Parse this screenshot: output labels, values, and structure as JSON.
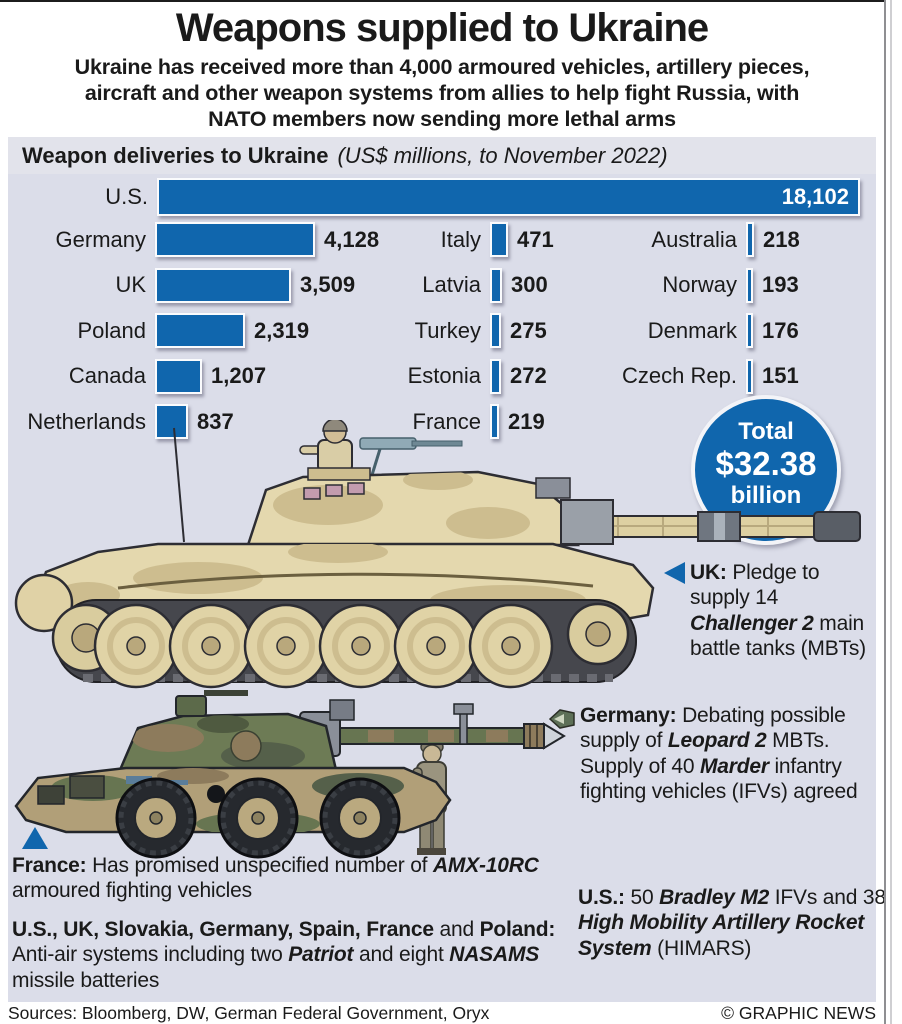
{
  "header": {
    "title": "Weapons supplied to Ukraine",
    "subtitle_lines": [
      "Ukraine has received more than 4,000 armoured vehicles, artillery pieces,",
      "aircraft and other weapon systems from allies to help fight Russia, with",
      "NATO members now sending more lethal arms"
    ]
  },
  "chart": {
    "heading": "Weapon deliveries to Ukraine",
    "heading_note": "(US$ millions, to November 2022)"
  },
  "chart_data": {
    "type": "bar",
    "title": "Weapon deliveries to Ukraine",
    "units": "US$ millions, to November 2022",
    "orientation": "horizontal",
    "categories": [
      "U.S.",
      "Germany",
      "UK",
      "Poland",
      "Canada",
      "Netherlands",
      "Italy",
      "Latvia",
      "Turkey",
      "Estonia",
      "France",
      "Australia",
      "Norway",
      "Denmark",
      "Czech Rep."
    ],
    "values": [
      18102,
      4128,
      3509,
      2319,
      1207,
      837,
      471,
      300,
      275,
      272,
      219,
      218,
      193,
      176,
      151
    ],
    "display_values": [
      "18,102",
      "4,128",
      "3,509",
      "2,319",
      "1,207",
      "837",
      "471",
      "300",
      "275",
      "272",
      "219",
      "218",
      "193",
      "176",
      "151"
    ],
    "layout": {
      "full_width_row_index": 0,
      "columns": [
        [
          1,
          2,
          3,
          4,
          5
        ],
        [
          6,
          7,
          8,
          9,
          10
        ],
        [
          11,
          12,
          13,
          14
        ]
      ],
      "legend": "none",
      "grid": "off"
    },
    "total": "Total $32.38 billion"
  },
  "total_badge": {
    "line1": "Total",
    "line2": "$32.38",
    "line3": "billion"
  },
  "annotations": {
    "uk": {
      "segments": [
        {
          "t": "UK: ",
          "b": true
        },
        {
          "t": "Pledge to supply 14 "
        },
        {
          "t": "Challenger 2",
          "b": true,
          "i": true
        },
        {
          "t": " main battle tanks (MBTs)"
        }
      ]
    },
    "germany": {
      "segments": [
        {
          "t": "Germany: ",
          "b": true
        },
        {
          "t": "Debating possible supply of "
        },
        {
          "t": "Leopard 2",
          "b": true,
          "i": true
        },
        {
          "t": " MBTs. Supply of 40 "
        },
        {
          "t": "Marder",
          "b": true,
          "i": true
        },
        {
          "t": " infantry fighting vehicles (IFVs) agreed"
        }
      ]
    },
    "us": {
      "segments": [
        {
          "t": "U.S.: ",
          "b": true
        },
        {
          "t": "50 "
        },
        {
          "t": "Bradley M2",
          "b": true,
          "i": true
        },
        {
          "t": " IFVs and 38 "
        },
        {
          "t": "High Mobility Artillery Rocket System",
          "b": true,
          "i": true
        },
        {
          "t": " (HIMARS)"
        }
      ]
    },
    "france": {
      "segments": [
        {
          "t": "France: ",
          "b": true
        },
        {
          "t": "Has promised unspecified number of "
        },
        {
          "t": "AMX-10RC",
          "b": true,
          "i": true
        },
        {
          "t": " armoured fighting vehicles"
        }
      ]
    },
    "antiair": {
      "segments": [
        {
          "t": "U.S., UK, Slovakia, Germany, Spain, France",
          "b": true
        },
        {
          "t": " and "
        },
        {
          "t": "Poland:",
          "b": true
        },
        {
          "t": " Anti-air systems including two "
        },
        {
          "t": "Patriot",
          "b": true,
          "i": true
        },
        {
          "t": " and eight "
        },
        {
          "t": "NASAMS",
          "b": true,
          "i": true
        },
        {
          "t": " missile batteries"
        }
      ]
    }
  },
  "illustrations": {
    "tank_caption": "Challenger 2 main battle tank",
    "amx_caption": "AMX-10RC armoured fighting vehicle"
  },
  "footer": {
    "sources": "Sources: Bloomberg, DW, German Federal Government, Oryx",
    "credit": "© GRAPHIC NEWS"
  },
  "colors": {
    "accent_blue": "#1066ad",
    "panel_bg": "#dbdde9",
    "header_strip_bg": "#e2e3eb",
    "text": "#1a1a1a",
    "tank_sand": "#e4d8ae",
    "tank_camo_patch": "#cdbd8f",
    "amx_green": "#6d7b55",
    "amx_tan": "#b19f78"
  }
}
